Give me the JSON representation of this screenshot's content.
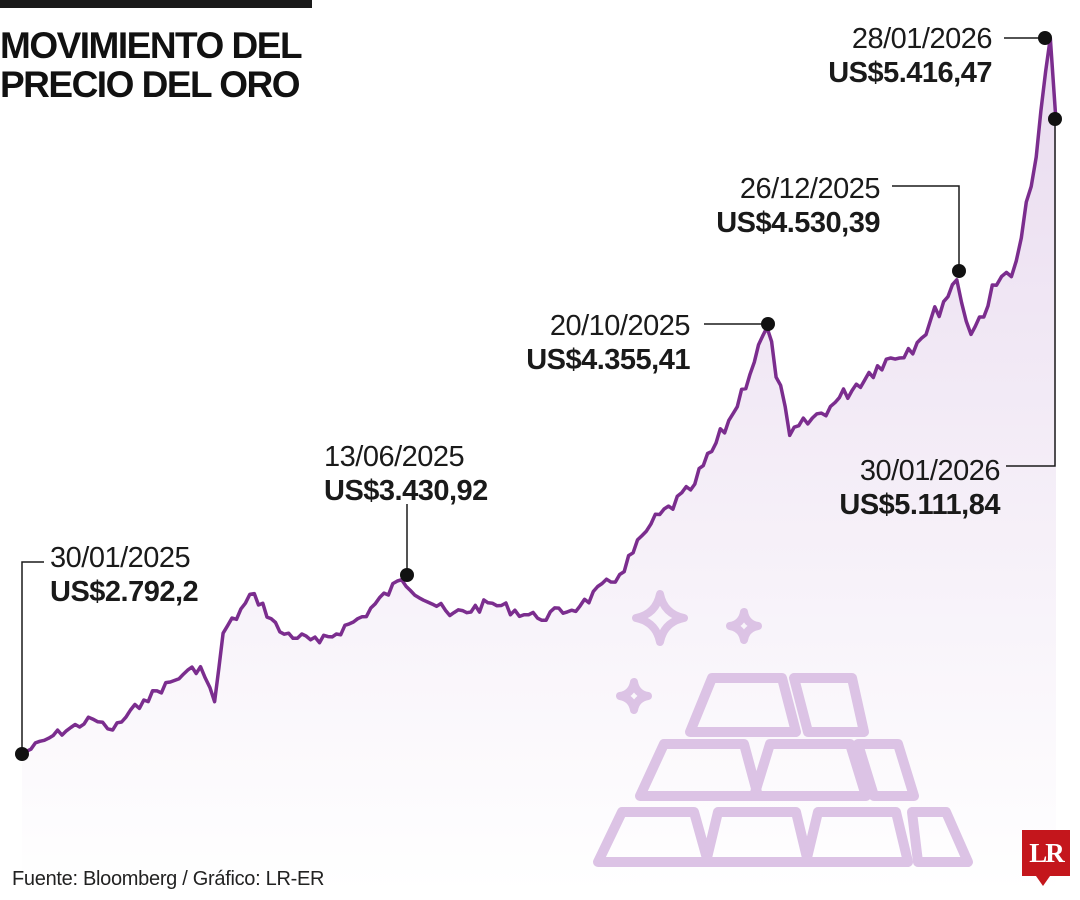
{
  "title_lines": [
    "MOVIMIENTO DEL",
    "PRECIO DEL ORO"
  ],
  "source": "Fuente: Bloomberg / Gráfico: LR-ER",
  "logo_text": "LR",
  "colors": {
    "line": "#7b2d8e",
    "area_top": "#e9dbef",
    "area_bottom": "#ffffff",
    "bars": "#dcc3e5",
    "text": "#1a1a1a",
    "logo_bg": "#c4161c"
  },
  "icons": [
    "gold-bars-icon",
    "sparkle-icon"
  ],
  "chart_data": {
    "type": "area",
    "title": "MOVIMIENTO DEL PRECIO DEL ORO",
    "xlabel": "",
    "ylabel": "",
    "ylim": [
      2700,
      5500
    ],
    "grid": false,
    "legend": "none",
    "series": [
      {
        "x": [
          "30/01/2025",
          "10/02/2025",
          "24/02/2025",
          "03/03/2025",
          "14/03/2025",
          "28/03/2025",
          "03/04/2025",
          "08/04/2025",
          "11/04/2025",
          "22/04/2025",
          "01/05/2025",
          "15/05/2025",
          "30/05/2025",
          "13/06/2025",
          "30/06/2025",
          "15/07/2025",
          "31/07/2025",
          "15/08/2025",
          "29/08/2025",
          "09/09/2025",
          "23/09/2025",
          "08/10/2025",
          "20/10/2025",
          "28/10/2025",
          "13/11/2025",
          "28/11/2025",
          "12/12/2025",
          "26/12/2025",
          "31/12/2025",
          "09/01/2026",
          "16/01/2026",
          "23/01/2026",
          "28/01/2026",
          "30/01/2026"
        ],
        "y": [
          2792.2,
          2860,
          2920,
          2880,
          2990,
          3085,
          3112,
          2984,
          3235,
          3380,
          3240,
          3200,
          3295,
          3430.92,
          3300,
          3345,
          3290,
          3335,
          3450,
          3635,
          3760,
          4040,
          4355.41,
          3960,
          4080,
          4215,
          4300,
          4530.39,
          4330,
          4510,
          4600,
          4980,
          5416.47,
          5111.84
        ]
      }
    ],
    "annotations": [
      {
        "date": "30/01/2025",
        "value": "US$2.792,2"
      },
      {
        "date": "13/06/2025",
        "value": "US$3.430,92"
      },
      {
        "date": "20/10/2025",
        "value": "US$4.355,41"
      },
      {
        "date": "26/12/2025",
        "value": "US$4.530,39"
      },
      {
        "date": "28/01/2026",
        "value": "US$5.416,47"
      },
      {
        "date": "30/01/2026",
        "value": "US$5.111,84"
      }
    ]
  }
}
